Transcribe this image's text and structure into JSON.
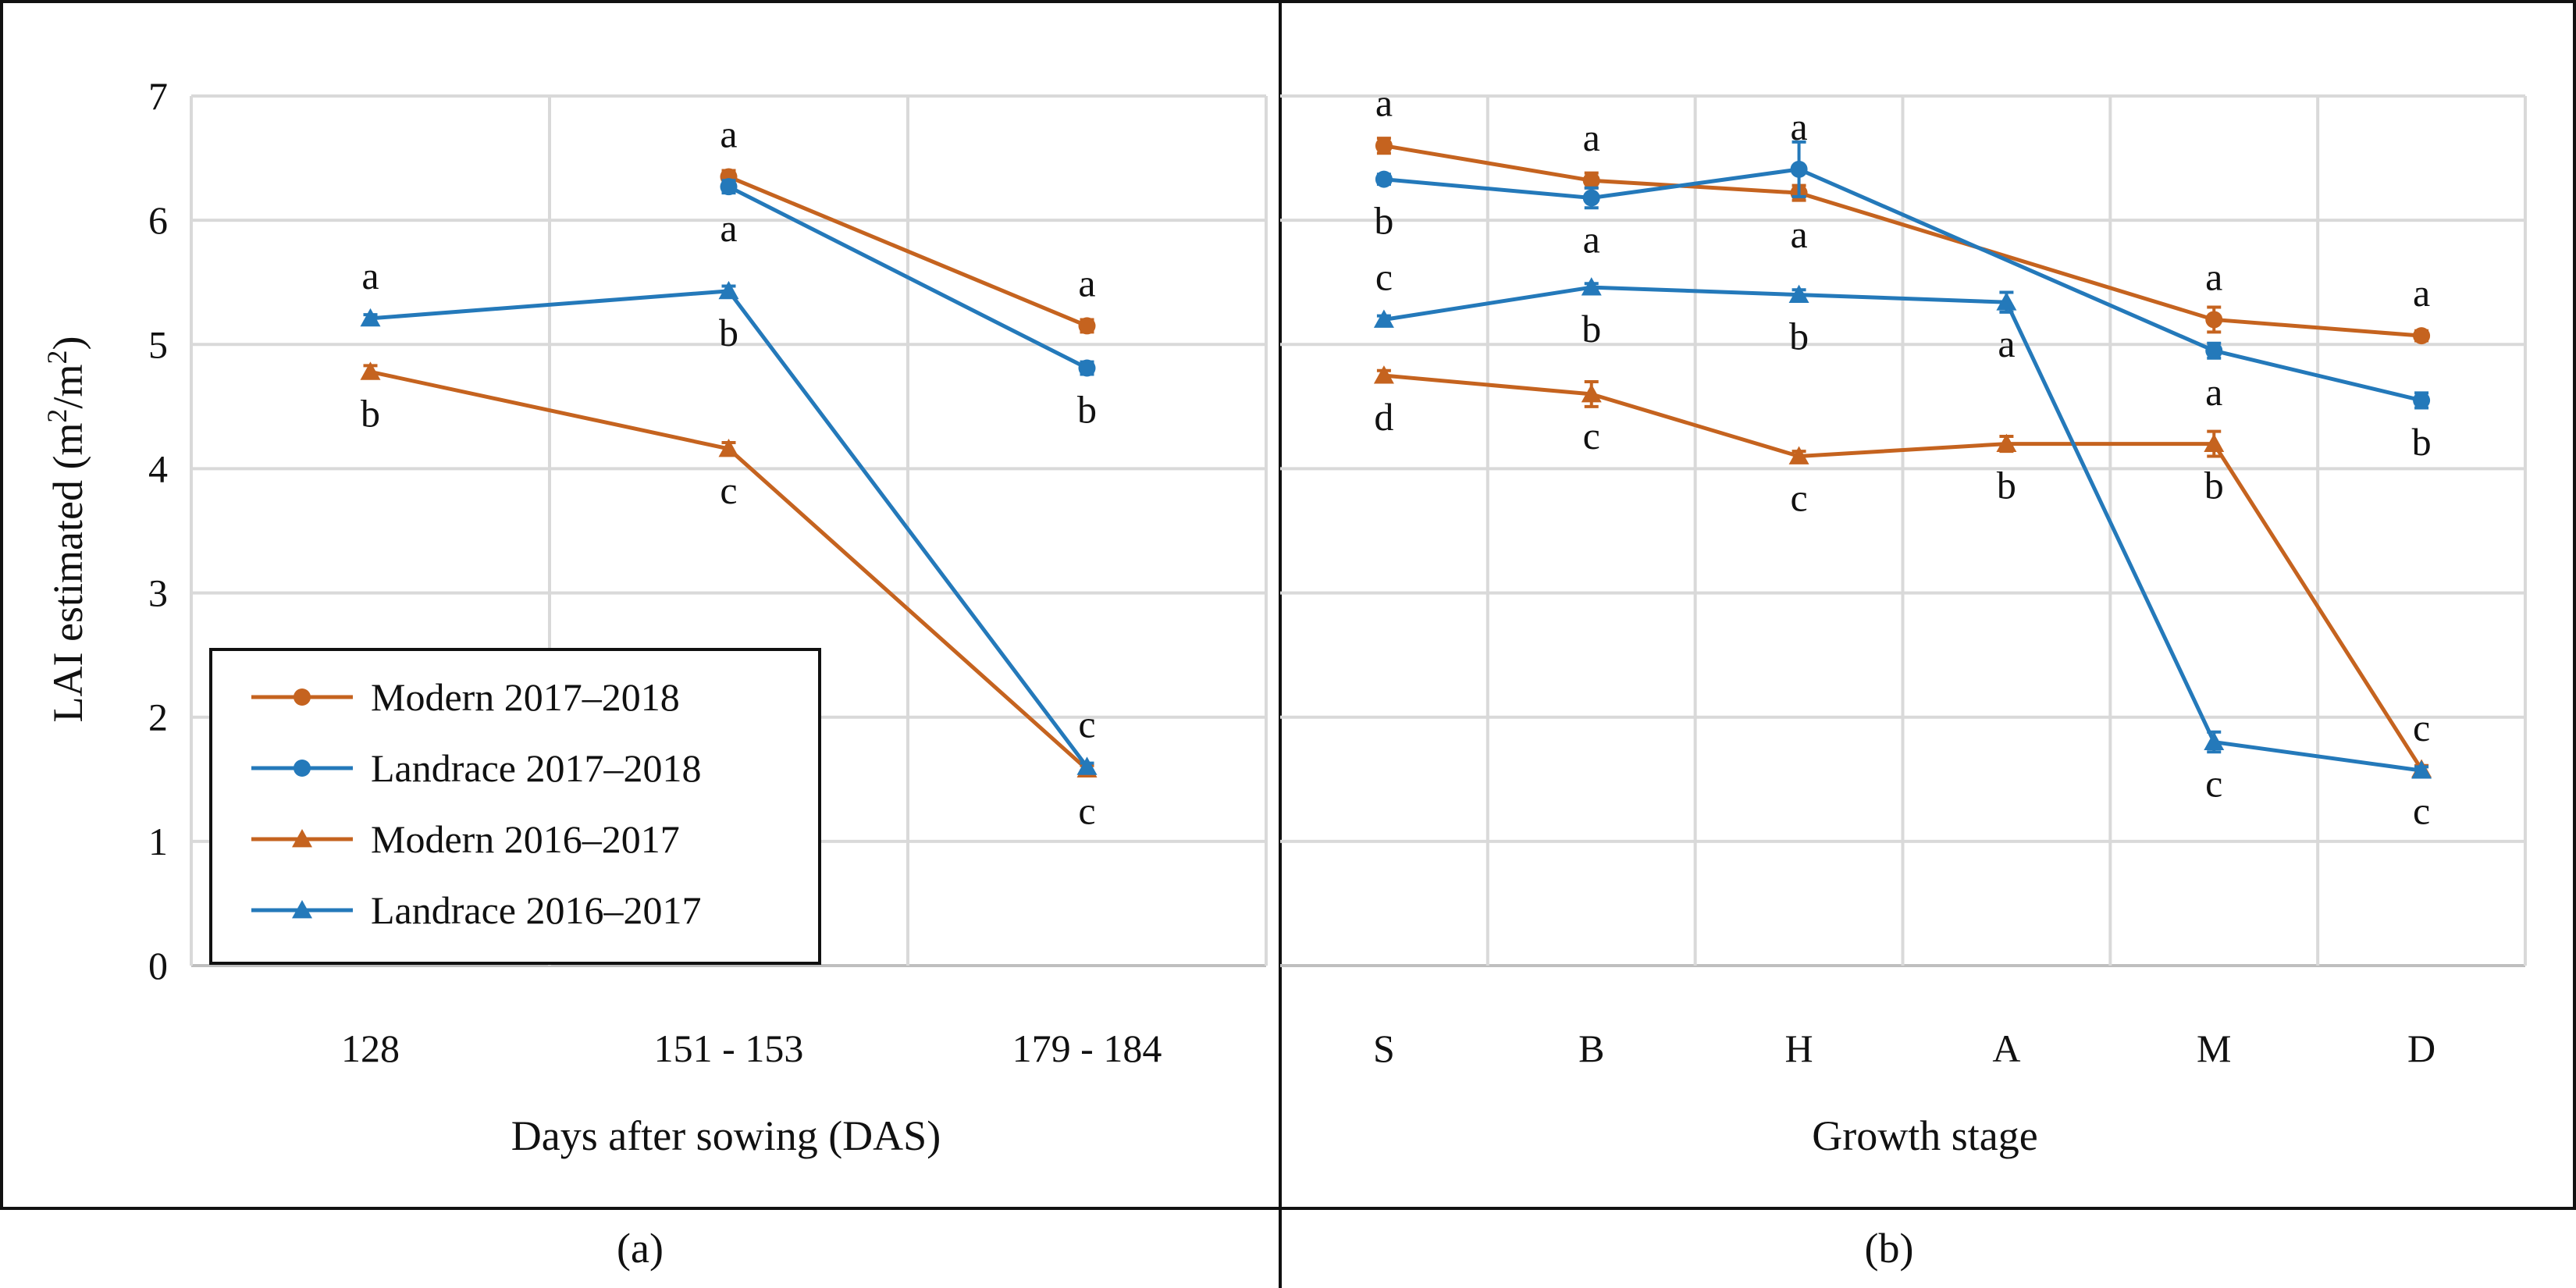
{
  "colors": {
    "modern": "#C5631F",
    "landrace": "#2479BA",
    "grid": "#d9d9d9",
    "frame": "#111111"
  },
  "legend": [
    {
      "label": "Modern 2017–2018",
      "color": "#C5631F",
      "marker": "circle"
    },
    {
      "label": "Landrace 2017–2018",
      "color": "#2479BA",
      "marker": "circle"
    },
    {
      "label": "Modern 2016–2017",
      "color": "#C5631F",
      "marker": "triangle"
    },
    {
      "label": "Landrace 2016–2017",
      "color": "#2479BA",
      "marker": "triangle"
    }
  ],
  "chart_data": [
    {
      "type": "line",
      "panel_label": "(a)",
      "title": "",
      "xlabel": "Days after sowing (DAS)",
      "ylabel": "LAI estimated (m²/m²)",
      "ylabel_parts": [
        "LAI estimated (m",
        "2",
        "/m",
        "2",
        ")"
      ],
      "ylim": [
        0,
        7
      ],
      "yticks": [
        0,
        1,
        2,
        3,
        4,
        5,
        6,
        7
      ],
      "grid": true,
      "legend_position": "bottom-left",
      "categories": [
        "128",
        "151 - 153",
        "179 - 184"
      ],
      "series": [
        {
          "name": "Modern 2017–2018",
          "color": "#C5631F",
          "marker": "circle",
          "values": [
            null,
            6.35,
            5.15
          ],
          "errors": [
            null,
            0.05,
            0.05
          ],
          "letters": [
            null,
            "a",
            "a"
          ],
          "letter_pos": [
            null,
            "above",
            "above"
          ]
        },
        {
          "name": "Landrace 2017–2018",
          "color": "#2479BA",
          "marker": "circle",
          "values": [
            null,
            6.27,
            4.81
          ],
          "errors": [
            null,
            0.05,
            0.05
          ],
          "letters": [
            null,
            "a",
            "b"
          ],
          "letter_pos": [
            null,
            "below",
            "below"
          ]
        },
        {
          "name": "Modern 2016–2017",
          "color": "#C5631F",
          "marker": "triangle",
          "values": [
            4.78,
            4.16,
            1.58
          ],
          "errors": [
            0.05,
            0.05,
            0.03
          ],
          "letters": [
            "b",
            "c",
            "c"
          ],
          "letter_pos": [
            "below",
            "below",
            "below"
          ]
        },
        {
          "name": "Landrace 2016–2017",
          "color": "#2479BA",
          "marker": "triangle",
          "values": [
            5.21,
            5.43,
            1.6
          ],
          "errors": [
            0.03,
            0.04,
            0.03
          ],
          "letters": [
            "a",
            "b",
            "c"
          ],
          "letter_pos": [
            "above",
            "below",
            "above"
          ]
        }
      ]
    },
    {
      "type": "line",
      "panel_label": "(b)",
      "title": "",
      "xlabel": "Growth stage",
      "ylabel": "",
      "ylim": [
        0,
        7
      ],
      "grid": true,
      "categories": [
        "S",
        "B",
        "H",
        "A",
        "M",
        "D"
      ],
      "series": [
        {
          "name": "Modern 2017–2018",
          "color": "#C5631F",
          "marker": "circle",
          "values": [
            6.6,
            6.32,
            6.22,
            null,
            5.2,
            5.07
          ],
          "errors": [
            0.06,
            0.06,
            0.06,
            null,
            0.1,
            0.04
          ],
          "letters": [
            "a",
            "a",
            "a",
            null,
            "a",
            "a"
          ],
          "letter_pos": [
            "above",
            "above",
            "below",
            null,
            "above",
            "above"
          ]
        },
        {
          "name": "Landrace 2017–2018",
          "color": "#2479BA",
          "marker": "circle",
          "values": [
            6.33,
            6.18,
            6.41,
            null,
            4.95,
            4.55
          ],
          "errors": [
            0.04,
            0.08,
            0.22,
            null,
            0.06,
            0.06
          ],
          "letters": [
            "b",
            "a",
            "a",
            null,
            "a",
            "b"
          ],
          "letter_pos": [
            "below",
            "below",
            "above",
            null,
            "below",
            "below"
          ]
        },
        {
          "name": "Modern 2016–2017",
          "color": "#C5631F",
          "marker": "triangle",
          "values": [
            4.75,
            4.6,
            4.1,
            4.2,
            4.2,
            1.58
          ],
          "errors": [
            0.04,
            0.1,
            0.04,
            0.06,
            0.1,
            0.03
          ],
          "letters": [
            "d",
            "c",
            "c",
            "b",
            "b",
            "c"
          ],
          "letter_pos": [
            "below",
            "below",
            "below",
            "below",
            "below",
            "below"
          ]
        },
        {
          "name": "Landrace 2016–2017",
          "color": "#2479BA",
          "marker": "triangle",
          "values": [
            5.2,
            5.46,
            5.4,
            5.34,
            1.8,
            1.57
          ],
          "errors": [
            0.03,
            0.03,
            0.04,
            0.08,
            0.08,
            0.03
          ],
          "letters": [
            "c",
            "b",
            "b",
            "a",
            "c",
            "c"
          ],
          "letter_pos": [
            "above",
            "below",
            "below",
            "below",
            "below",
            "above"
          ]
        }
      ]
    }
  ]
}
